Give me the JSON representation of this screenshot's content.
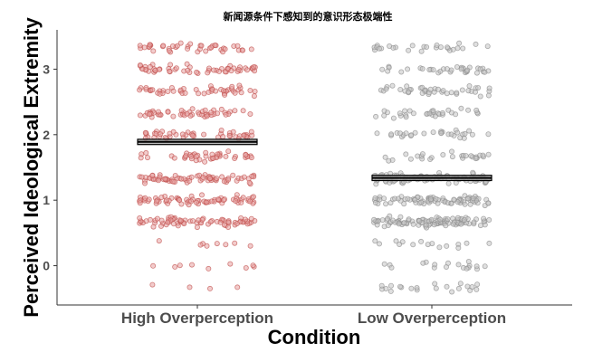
{
  "chart_data": {
    "type": "scatter",
    "title": "新闻源条件下感知到的意识形态极端性",
    "xlabel": "Condition",
    "ylabel": "Perceived Ideological Extremity",
    "categories": [
      "High Overperception",
      "Low Overperception"
    ],
    "ylim": [
      -0.6,
      3.6
    ],
    "yticks": [
      0,
      1,
      2,
      3
    ],
    "grid": false,
    "series": [
      {
        "category": "High Overperception",
        "mean": 1.89,
        "ci": [
          1.85,
          1.93
        ],
        "color": "#c0504d",
        "fill": "#e8a3a3",
        "bar_fill": "#9e9e9e",
        "point_count": 520,
        "point_dist": {
          "low_mass": 0.05,
          "mid_mass": 0.4,
          "upper_mass": 0.55
        }
      },
      {
        "category": "Low Overperception",
        "mean": 1.34,
        "ci": [
          1.3,
          1.38
        ],
        "color": "#8c8c8c",
        "fill": "#c4c4c4",
        "bar_fill": "#9e9e9e",
        "point_count": 520,
        "point_dist": {
          "low_mass": 0.1,
          "mid_mass": 0.55,
          "upper_mass": 0.35
        }
      }
    ],
    "y_values_levels": [
      -0.33,
      0,
      0.33,
      0.67,
      1,
      1.33,
      1.67,
      2,
      2.33,
      2.67,
      3,
      3.33
    ]
  }
}
